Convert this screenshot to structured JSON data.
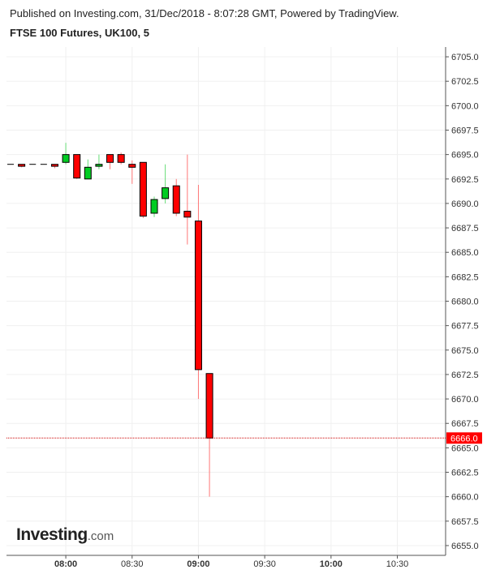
{
  "header": {
    "published": "Published on Investing.com, 31/Dec/2018 - 8:07:28 GMT, Powered by TradingView.",
    "title": "FTSE 100 Futures, UK100, 5"
  },
  "logo": {
    "main": "Investing",
    "suffix": ".com"
  },
  "colors": {
    "up": "#00cc22",
    "down": "#ff0000",
    "last_price_line": "#cc0000",
    "grid": "#f0f0f0",
    "axis": "#555555"
  },
  "chart_data": {
    "type": "candlestick",
    "interval_minutes": 5,
    "x_tick_labels": [
      {
        "time": "08:00",
        "bold": true
      },
      {
        "time": "08:30",
        "bold": false
      },
      {
        "time": "09:00",
        "bold": true
      },
      {
        "time": "09:30",
        "bold": false
      },
      {
        "time": "10:00",
        "bold": true
      },
      {
        "time": "10:30",
        "bold": false
      }
    ],
    "y_ticks": [
      "6655.0",
      "6657.5",
      "6660.0",
      "6662.5",
      "6665.0",
      "6667.5",
      "6670.0",
      "6672.5",
      "6675.0",
      "6677.5",
      "6680.0",
      "6682.5",
      "6685.0",
      "6687.5",
      "6690.0",
      "6692.5",
      "6695.0",
      "6697.5",
      "6700.0",
      "6702.5",
      "6705.0"
    ],
    "ylim": [
      6654,
      6706
    ],
    "xlim": [
      "07:35",
      "10:50"
    ],
    "last_price": "6666.0",
    "candles": [
      {
        "time": "07:35",
        "open": 6694.0,
        "high": 6694.0,
        "low": 6694.0,
        "close": 6694.0
      },
      {
        "time": "07:40",
        "open": 6694.0,
        "high": 6694.0,
        "low": 6693.7,
        "close": 6693.8
      },
      {
        "time": "07:45",
        "open": 6694.0,
        "high": 6694.0,
        "low": 6694.0,
        "close": 6694.0
      },
      {
        "time": "07:50",
        "open": 6694.0,
        "high": 6694.0,
        "low": 6694.0,
        "close": 6694.0
      },
      {
        "time": "07:55",
        "open": 6694.0,
        "high": 6694.0,
        "low": 6693.6,
        "close": 6693.8
      },
      {
        "time": "08:00",
        "open": 6694.2,
        "high": 6696.2,
        "low": 6694.0,
        "close": 6695.0
      },
      {
        "time": "08:05",
        "open": 6695.0,
        "high": 6695.0,
        "low": 6692.5,
        "close": 6692.6
      },
      {
        "time": "08:10",
        "open": 6692.5,
        "high": 6694.5,
        "low": 6692.5,
        "close": 6693.7
      },
      {
        "time": "08:15",
        "open": 6693.8,
        "high": 6695.0,
        "low": 6693.5,
        "close": 6694.0
      },
      {
        "time": "08:20",
        "open": 6695.0,
        "high": 6695.0,
        "low": 6693.5,
        "close": 6694.2
      },
      {
        "time": "08:25",
        "open": 6695.0,
        "high": 6695.2,
        "low": 6694.0,
        "close": 6694.2
      },
      {
        "time": "08:30",
        "open": 6694.0,
        "high": 6694.4,
        "low": 6692.0,
        "close": 6693.7
      },
      {
        "time": "08:35",
        "open": 6694.2,
        "high": 6694.2,
        "low": 6688.5,
        "close": 6688.7
      },
      {
        "time": "08:40",
        "open": 6689.0,
        "high": 6690.7,
        "low": 6688.6,
        "close": 6690.4
      },
      {
        "time": "08:45",
        "open": 6690.5,
        "high": 6694.0,
        "low": 6690.0,
        "close": 6691.6
      },
      {
        "time": "08:50",
        "open": 6691.8,
        "high": 6692.5,
        "low": 6688.7,
        "close": 6689.0
      },
      {
        "time": "08:55",
        "open": 6689.2,
        "high": 6695.0,
        "low": 6685.8,
        "close": 6688.6
      },
      {
        "time": "09:00",
        "open": 6688.2,
        "high": 6691.9,
        "low": 6670.0,
        "close": 6673.0
      },
      {
        "time": "09:05",
        "open": 6672.6,
        "high": 6672.6,
        "low": 6660.0,
        "close": 6666.0
      }
    ]
  }
}
